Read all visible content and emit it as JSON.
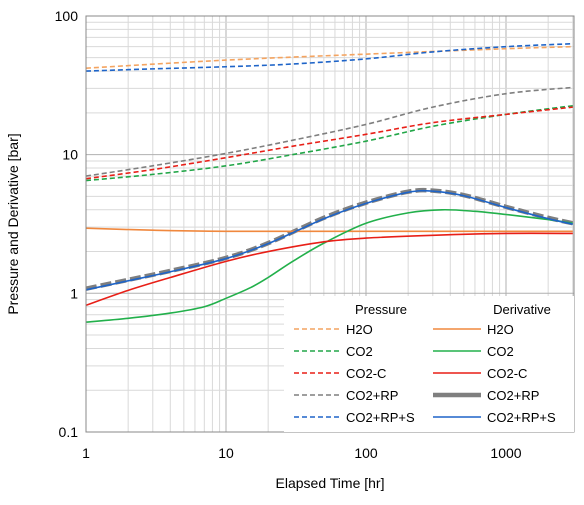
{
  "chart_data": {
    "type": "line",
    "xlabel": "Elapsed Time [hr]",
    "ylabel": "Pressure and Derivative [bar]",
    "xscale": "log",
    "yscale": "log",
    "xlim": [
      1,
      3000
    ],
    "ylim": [
      0.1,
      100
    ],
    "x_tick_labels": [
      "1",
      "10",
      "100",
      "1000"
    ],
    "x_tick_values": [
      1,
      10,
      100,
      1000
    ],
    "y_tick_labels": [
      "0.1",
      "1",
      "10",
      "100"
    ],
    "y_tick_values": [
      0.1,
      1,
      10,
      100
    ],
    "grid": true,
    "legend_placement": "bottom-right",
    "legend_headers": [
      "Pressure",
      "Derivative"
    ],
    "series": [
      {
        "name": "H2O",
        "group": "Pressure",
        "style": "dashed",
        "color": "#F4A460",
        "width": 1.6,
        "x": [
          1,
          10,
          100,
          1000,
          3000
        ],
        "y": [
          42,
          48,
          53,
          58,
          60
        ]
      },
      {
        "name": "CO2",
        "group": "Pressure",
        "style": "dashed",
        "color": "#22A648",
        "width": 1.6,
        "x": [
          1,
          3,
          10,
          30,
          100,
          300,
          1000,
          3000
        ],
        "y": [
          6.5,
          7.2,
          8.3,
          10,
          12.5,
          16,
          19.5,
          22.5
        ]
      },
      {
        "name": "CO2-C",
        "group": "Pressure",
        "style": "dashed",
        "color": "#E81F17",
        "width": 1.6,
        "x": [
          1,
          3,
          10,
          30,
          100,
          300,
          1000,
          3000
        ],
        "y": [
          6.7,
          7.8,
          9.5,
          11.5,
          14,
          17,
          19.5,
          22
        ]
      },
      {
        "name": "CO2+RP",
        "group": "Pressure",
        "style": "dashed",
        "color": "#7F7F7F",
        "width": 1.6,
        "x": [
          1,
          3,
          10,
          30,
          100,
          300,
          1000,
          3000
        ],
        "y": [
          7,
          8.3,
          10.2,
          12.7,
          16.5,
          22,
          27.5,
          30.5
        ]
      },
      {
        "name": "CO2+RP+S",
        "group": "Pressure",
        "style": "dashed",
        "color": "#1E64C8",
        "width": 1.6,
        "x": [
          1,
          3,
          10,
          30,
          100,
          300,
          1000,
          3000
        ],
        "y": [
          40,
          41.5,
          43,
          45,
          49,
          55,
          60,
          63
        ]
      },
      {
        "name": "H2O",
        "group": "Derivative",
        "style": "solid",
        "color": "#F0883E",
        "width": 1.6,
        "x": [
          1,
          3,
          10,
          100,
          1000,
          3000
        ],
        "y": [
          2.95,
          2.85,
          2.8,
          2.8,
          2.8,
          2.8
        ]
      },
      {
        "name": "CO2",
        "group": "Derivative",
        "style": "solid",
        "color": "#22B04B",
        "width": 1.6,
        "x": [
          1,
          2,
          4,
          7,
          10,
          15,
          20,
          30,
          50,
          100,
          200,
          350,
          600,
          1000,
          2000,
          3000
        ],
        "y": [
          0.62,
          0.66,
          0.72,
          0.8,
          0.92,
          1.1,
          1.3,
          1.7,
          2.3,
          3.2,
          3.8,
          4.0,
          3.9,
          3.7,
          3.4,
          3.2
        ]
      },
      {
        "name": "CO2-C",
        "group": "Derivative",
        "style": "solid",
        "color": "#E81F17",
        "width": 1.6,
        "x": [
          1,
          2,
          4,
          10,
          20,
          50,
          100,
          300,
          1000,
          3000
        ],
        "y": [
          0.82,
          1.05,
          1.3,
          1.7,
          2.0,
          2.35,
          2.5,
          2.62,
          2.7,
          2.7
        ]
      },
      {
        "name": "CO2+RP",
        "group": "Derivative",
        "style": "dashed-thick",
        "color": "#7F7F7F",
        "width": 4.5,
        "x": [
          1,
          2,
          4,
          10,
          20,
          50,
          100,
          200,
          300,
          500,
          1000,
          2000,
          3000
        ],
        "y": [
          1.08,
          1.25,
          1.45,
          1.8,
          2.3,
          3.5,
          4.5,
          5.4,
          5.5,
          5.1,
          4.2,
          3.5,
          3.2
        ]
      },
      {
        "name": "CO2+RP+S",
        "group": "Derivative",
        "style": "solid",
        "color": "#1E64C8",
        "width": 1.6,
        "x": [
          1,
          2,
          4,
          10,
          20,
          50,
          100,
          200,
          300,
          500,
          1000,
          2000,
          3000
        ],
        "y": [
          1.06,
          1.23,
          1.43,
          1.78,
          2.28,
          3.45,
          4.45,
          5.35,
          5.45,
          5.05,
          4.15,
          3.45,
          3.15
        ]
      }
    ]
  }
}
